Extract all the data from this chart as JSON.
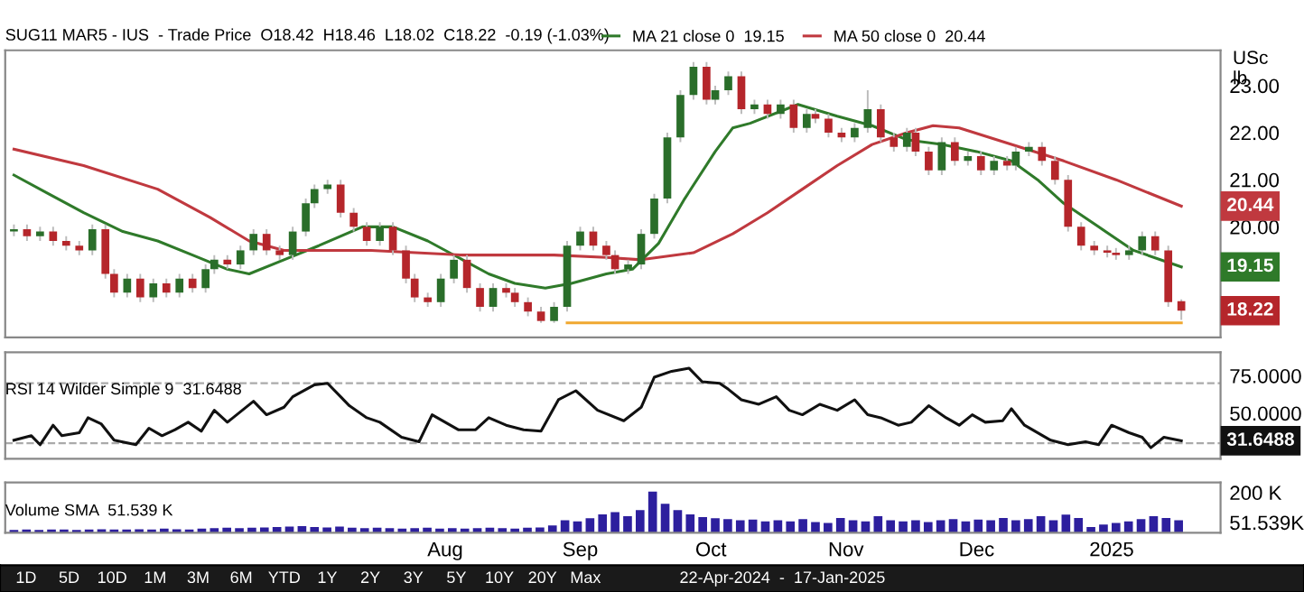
{
  "chart_data": [
    {
      "type": "candlestick",
      "title": "SUG11 MAR5 - IUS  - Trade Price  O18.42  H18.46  L18.02  C18.22  -0.19 (-1.03%)",
      "ylabel": "USc\nlb",
      "legend": "top",
      "grid": false,
      "tick_labels": "y",
      "xlim": [
        "2024-04-22",
        "2025-01-26"
      ],
      "ylim": [
        17.65,
        23.75
      ],
      "yticks": [
        {
          "value": 20,
          "label": "20.00"
        },
        {
          "value": 21,
          "label": "21.00"
        },
        {
          "value": 22,
          "label": "22.00"
        },
        {
          "value": 23,
          "label": "23.00"
        }
      ],
      "x": [
        "2024-04-24",
        "2024-04-27",
        "2024-04-30",
        "2024-05-03",
        "2024-05-06",
        "2024-05-09",
        "2024-05-12",
        "2024-05-15",
        "2024-05-17",
        "2024-05-20",
        "2024-05-23",
        "2024-05-26",
        "2024-05-29",
        "2024-06-01",
        "2024-06-04",
        "2024-06-07",
        "2024-06-09",
        "2024-06-12",
        "2024-06-15",
        "2024-06-18",
        "2024-06-21",
        "2024-06-24",
        "2024-06-27",
        "2024-06-30",
        "2024-07-02",
        "2024-07-05",
        "2024-07-08",
        "2024-07-11",
        "2024-07-14",
        "2024-07-17",
        "2024-07-20",
        "2024-07-23",
        "2024-07-25",
        "2024-07-28",
        "2024-07-31",
        "2024-08-03",
        "2024-08-06",
        "2024-08-09",
        "2024-08-12",
        "2024-08-15",
        "2024-08-17",
        "2024-08-20",
        "2024-08-23",
        "2024-08-26",
        "2024-08-29",
        "2024-09-01",
        "2024-09-04",
        "2024-09-07",
        "2024-09-09",
        "2024-09-12",
        "2024-09-15",
        "2024-09-18",
        "2024-09-21",
        "2024-09-24",
        "2024-09-27",
        "2024-09-30",
        "2024-10-02",
        "2024-10-05",
        "2024-10-08",
        "2024-10-11",
        "2024-10-14",
        "2024-10-17",
        "2024-10-20",
        "2024-10-23",
        "2024-10-25",
        "2024-10-28",
        "2024-10-31",
        "2024-11-03",
        "2024-11-06",
        "2024-11-09",
        "2024-11-12",
        "2024-11-15",
        "2024-11-17",
        "2024-11-20",
        "2024-11-23",
        "2024-11-26",
        "2024-11-29",
        "2024-12-02",
        "2024-12-05",
        "2024-12-08",
        "2024-12-10",
        "2024-12-13",
        "2024-12-16",
        "2024-12-19",
        "2024-12-22",
        "2024-12-25",
        "2024-12-28",
        "2024-12-31",
        "2025-01-02",
        "2025-01-05",
        "2025-01-08",
        "2025-01-11",
        "2025-01-14",
        "2025-01-17"
      ],
      "ohlc": [
        [
          19.9,
          20.05,
          19.8,
          19.95
        ],
        [
          19.95,
          20.05,
          19.7,
          19.8
        ],
        [
          19.8,
          20.0,
          19.7,
          19.9
        ],
        [
          19.9,
          20.0,
          19.6,
          19.7
        ],
        [
          19.7,
          19.8,
          19.5,
          19.6
        ],
        [
          19.6,
          19.7,
          19.4,
          19.5
        ],
        [
          19.5,
          20.05,
          19.4,
          19.95
        ],
        [
          19.95,
          20.05,
          18.9,
          19.0
        ],
        [
          19.0,
          19.1,
          18.5,
          18.6
        ],
        [
          18.6,
          19.0,
          18.5,
          18.9
        ],
        [
          18.9,
          19.0,
          18.4,
          18.5
        ],
        [
          18.5,
          18.9,
          18.4,
          18.8
        ],
        [
          18.8,
          18.9,
          18.5,
          18.6
        ],
        [
          18.6,
          19.0,
          18.5,
          18.9
        ],
        [
          18.9,
          19.0,
          18.6,
          18.7
        ],
        [
          18.7,
          19.2,
          18.6,
          19.1
        ],
        [
          19.1,
          19.4,
          19.0,
          19.3
        ],
        [
          19.3,
          19.4,
          19.1,
          19.2
        ],
        [
          19.2,
          19.6,
          19.1,
          19.5
        ],
        [
          19.5,
          19.95,
          19.4,
          19.85
        ],
        [
          19.85,
          19.95,
          19.4,
          19.5
        ],
        [
          19.5,
          19.6,
          19.3,
          19.4
        ],
        [
          19.4,
          20.0,
          19.3,
          19.9
        ],
        [
          19.9,
          20.6,
          19.8,
          20.5
        ],
        [
          20.5,
          20.9,
          20.4,
          20.8
        ],
        [
          20.8,
          21.0,
          20.7,
          20.9
        ],
        [
          20.9,
          21.0,
          20.2,
          20.3
        ],
        [
          20.3,
          20.4,
          19.9,
          20.0
        ],
        [
          20.0,
          20.1,
          19.6,
          19.7
        ],
        [
          19.7,
          20.1,
          19.6,
          20.0
        ],
        [
          20.0,
          20.1,
          19.4,
          19.5
        ],
        [
          19.5,
          19.6,
          18.8,
          18.9
        ],
        [
          18.9,
          19.0,
          18.4,
          18.5
        ],
        [
          18.5,
          18.6,
          18.3,
          18.4
        ],
        [
          18.4,
          19.0,
          18.3,
          18.9
        ],
        [
          18.9,
          19.4,
          18.8,
          19.3
        ],
        [
          19.3,
          19.4,
          18.6,
          18.7
        ],
        [
          18.7,
          18.8,
          18.2,
          18.3
        ],
        [
          18.3,
          18.8,
          18.2,
          18.7
        ],
        [
          18.7,
          18.8,
          18.5,
          18.6
        ],
        [
          18.6,
          18.7,
          18.3,
          18.4
        ],
        [
          18.4,
          18.5,
          18.1,
          18.2
        ],
        [
          18.2,
          18.3,
          17.96,
          18.0
        ],
        [
          18.0,
          18.4,
          17.96,
          18.3
        ],
        [
          18.3,
          19.7,
          18.2,
          19.6
        ],
        [
          19.6,
          20.0,
          19.5,
          19.9
        ],
        [
          19.9,
          20.0,
          19.5,
          19.6
        ],
        [
          19.6,
          19.7,
          19.3,
          19.4
        ],
        [
          19.4,
          19.5,
          19.0,
          19.1
        ],
        [
          19.1,
          19.3,
          19.0,
          19.2
        ],
        [
          19.2,
          19.95,
          19.1,
          19.85
        ],
        [
          19.85,
          20.7,
          19.75,
          20.6
        ],
        [
          20.6,
          22.0,
          20.5,
          21.9
        ],
        [
          21.9,
          22.9,
          21.8,
          22.8
        ],
        [
          22.8,
          23.5,
          22.7,
          23.4
        ],
        [
          23.4,
          23.5,
          22.6,
          22.7
        ],
        [
          22.7,
          23.0,
          22.6,
          22.9
        ],
        [
          22.9,
          23.3,
          22.8,
          23.2
        ],
        [
          23.2,
          23.3,
          22.4,
          22.5
        ],
        [
          22.5,
          22.7,
          22.4,
          22.6
        ],
        [
          22.6,
          22.7,
          22.3,
          22.4
        ],
        [
          22.4,
          22.7,
          22.3,
          22.6
        ],
        [
          22.6,
          22.7,
          22.0,
          22.1
        ],
        [
          22.1,
          22.5,
          22.0,
          22.4
        ],
        [
          22.4,
          22.5,
          22.2,
          22.3
        ],
        [
          22.3,
          22.4,
          21.9,
          22.0
        ],
        [
          22.0,
          22.1,
          21.8,
          21.9
        ],
        [
          21.9,
          22.2,
          21.8,
          22.1
        ],
        [
          22.1,
          22.9,
          22.0,
          22.5
        ],
        [
          22.5,
          22.6,
          21.8,
          21.9
        ],
        [
          21.9,
          22.0,
          21.6,
          21.7
        ],
        [
          21.7,
          22.1,
          21.6,
          22.0
        ],
        [
          22.0,
          22.1,
          21.5,
          21.6
        ],
        [
          21.6,
          21.7,
          21.1,
          21.2
        ],
        [
          21.2,
          21.9,
          21.1,
          21.8
        ],
        [
          21.8,
          21.9,
          21.3,
          21.4
        ],
        [
          21.4,
          21.6,
          21.3,
          21.5
        ],
        [
          21.5,
          21.6,
          21.1,
          21.2
        ],
        [
          21.2,
          21.5,
          21.1,
          21.4
        ],
        [
          21.4,
          21.5,
          21.2,
          21.3
        ],
        [
          21.3,
          21.7,
          21.2,
          21.6
        ],
        [
          21.6,
          21.8,
          21.5,
          21.7
        ],
        [
          21.7,
          21.8,
          21.3,
          21.4
        ],
        [
          21.4,
          21.5,
          20.9,
          21.0
        ],
        [
          21.0,
          21.1,
          19.9,
          20.0
        ],
        [
          20.0,
          20.1,
          19.5,
          19.6
        ],
        [
          19.6,
          19.7,
          19.4,
          19.5
        ],
        [
          19.5,
          19.6,
          19.35,
          19.45
        ],
        [
          19.45,
          19.55,
          19.3,
          19.4
        ],
        [
          19.4,
          19.6,
          19.3,
          19.5
        ],
        [
          19.5,
          19.9,
          19.4,
          19.8
        ],
        [
          19.8,
          19.9,
          19.4,
          19.5
        ],
        [
          19.5,
          19.6,
          18.3,
          18.4
        ],
        [
          18.42,
          18.46,
          18.02,
          18.22
        ]
      ],
      "series": [
        {
          "type": "line",
          "name": "MA 21 close 0  19.15",
          "color": "#2f7a2a",
          "x": [
            "2024-04-24",
            "2024-05-02",
            "2024-05-10",
            "2024-05-19",
            "2024-05-27",
            "2024-06-04",
            "2024-06-12",
            "2024-06-17",
            "2024-06-25",
            "2024-07-03",
            "2024-07-13",
            "2024-07-20",
            "2024-07-28",
            "2024-08-05",
            "2024-08-11",
            "2024-08-17",
            "2024-08-24",
            "2024-08-30",
            "2024-09-07",
            "2024-09-13",
            "2024-09-19",
            "2024-09-25",
            "2024-10-02",
            "2024-10-06",
            "2024-10-10",
            "2024-10-21",
            "2024-10-30",
            "2024-11-07",
            "2024-11-15",
            "2024-11-23",
            "2024-12-01",
            "2024-12-09",
            "2024-12-15",
            "2024-12-21",
            "2024-12-29",
            "2025-01-06",
            "2025-01-17"
          ],
          "values": [
            21.1,
            20.7,
            20.3,
            19.9,
            19.7,
            19.4,
            19.1,
            19.0,
            19.3,
            19.6,
            20.0,
            20.0,
            19.7,
            19.3,
            19.0,
            18.8,
            18.7,
            18.8,
            19.0,
            19.1,
            19.65,
            20.6,
            21.6,
            22.1,
            22.2,
            22.6,
            22.35,
            22.15,
            21.85,
            21.75,
            21.6,
            21.4,
            21.0,
            20.5,
            20.0,
            19.5,
            19.15
          ]
        },
        {
          "type": "line",
          "name": "MA 50 close 0  20.44",
          "color": "#c0393f",
          "x": [
            "2024-04-24",
            "2024-05-10",
            "2024-05-27",
            "2024-06-08",
            "2024-06-17",
            "2024-06-25",
            "2024-07-15",
            "2024-08-05",
            "2024-08-26",
            "2024-09-07",
            "2024-09-15",
            "2024-09-27",
            "2024-10-06",
            "2024-10-14",
            "2024-10-22",
            "2024-10-30",
            "2024-11-07",
            "2024-11-15",
            "2024-11-21",
            "2024-11-27",
            "2024-12-09",
            "2024-12-21",
            "2025-01-02",
            "2025-01-17"
          ],
          "values": [
            21.65,
            21.3,
            20.8,
            20.2,
            19.7,
            19.5,
            19.5,
            19.4,
            19.4,
            19.35,
            19.3,
            19.45,
            19.85,
            20.3,
            20.8,
            21.3,
            21.75,
            22.0,
            22.15,
            22.1,
            21.75,
            21.4,
            21.0,
            20.44
          ]
        },
        {
          "type": "line",
          "color": "#f0a830",
          "x": [
            "2024-08-29",
            "2025-01-17"
          ],
          "values": [
            17.96,
            17.96
          ]
        }
      ],
      "annotations": [
        {
          "text": "20.44",
          "x": "2025-01-17",
          "y": 20.44
        },
        {
          "text": "19.15",
          "x": "2025-01-17",
          "y": 19.15
        },
        {
          "text": "18.22",
          "x": "2025-01-17",
          "y": 18.22
        }
      ]
    },
    {
      "type": "line",
      "title": "RSI 14 Wilder Simple 9  31.6488",
      "grid": false,
      "tick_labels": "y",
      "xlim": [
        "2024-04-22",
        "2025-01-26"
      ],
      "ylim": [
        19.6,
        90.7
      ],
      "yticks": [
        {
          "value": 50,
          "label": "50.0000"
        },
        {
          "value": 75,
          "label": "75.0000"
        }
      ],
      "ref_lines": [
        {
          "axis": "y",
          "value": 70,
          "color": "#aaaaaa",
          "line_style": "dashed"
        },
        {
          "axis": "y",
          "value": 30,
          "color": "#aaaaaa",
          "line_style": "dashed"
        }
      ],
      "series": [
        {
          "color": "#111111",
          "x": [
            "2024-04-24",
            "2024-04-28",
            "2024-04-30",
            "2024-05-03",
            "2024-05-05",
            "2024-05-09",
            "2024-05-11",
            "2024-05-14",
            "2024-05-17",
            "2024-05-22",
            "2024-05-25",
            "2024-05-28",
            "2024-05-31",
            "2024-06-03",
            "2024-06-06",
            "2024-06-09",
            "2024-06-12",
            "2024-06-18",
            "2024-06-21",
            "2024-06-25",
            "2024-06-27",
            "2024-07-02",
            "2024-07-05",
            "2024-07-08",
            "2024-07-10",
            "2024-07-14",
            "2024-07-17",
            "2024-07-22",
            "2024-07-26",
            "2024-07-29",
            "2024-08-04",
            "2024-08-08",
            "2024-08-11",
            "2024-08-15",
            "2024-08-19",
            "2024-08-23",
            "2024-08-27",
            "2024-08-31",
            "2024-09-05",
            "2024-09-11",
            "2024-09-15",
            "2024-09-18",
            "2024-09-22",
            "2024-09-26",
            "2024-09-29",
            "2024-10-03",
            "2024-10-05",
            "2024-10-08",
            "2024-10-12",
            "2024-10-16",
            "2024-10-19",
            "2024-10-22",
            "2024-10-26",
            "2024-10-30",
            "2024-11-03",
            "2024-11-06",
            "2024-11-09",
            "2024-11-13",
            "2024-11-16",
            "2024-11-20",
            "2024-11-24",
            "2024-11-27",
            "2024-11-30",
            "2024-12-03",
            "2024-12-07",
            "2024-12-09",
            "2024-12-12",
            "2024-12-18",
            "2024-12-22",
            "2024-12-26",
            "2024-12-29",
            "2025-01-01",
            "2025-01-05",
            "2025-01-08",
            "2025-01-10",
            "2025-01-13",
            "2025-01-17"
          ],
          "values": [
            32,
            35,
            29,
            42,
            35,
            37,
            47,
            43,
            32,
            29,
            40,
            35,
            39,
            44,
            38,
            52,
            44,
            58,
            49,
            54,
            61,
            69,
            70,
            61,
            55,
            47,
            44,
            34,
            31,
            49,
            39,
            39,
            47,
            42,
            39,
            38,
            59,
            65,
            52,
            45,
            54,
            74,
            78,
            80,
            71,
            70,
            66,
            59,
            56,
            61,
            52,
            49,
            56,
            52,
            59,
            49,
            47,
            42,
            44,
            55,
            47,
            42,
            49,
            44,
            45,
            53,
            42,
            32,
            29,
            31,
            29,
            42,
            37,
            34,
            27,
            34,
            31.6488
          ]
        }
      ],
      "annotations": [
        {
          "text": "31.6488",
          "x": "2025-01-17",
          "y": 31.6488
        }
      ]
    },
    {
      "type": "bar",
      "title": "Volume SMA  51.539 K",
      "grid": false,
      "xlim": [
        "2024-04-22",
        "2025-01-26"
      ],
      "ylim": [
        0,
        250
      ],
      "yticks": [
        {
          "value": 51.539,
          "label": "51.539K"
        },
        {
          "value": 200,
          "label": "200 K"
        }
      ],
      "xticks": [
        {
          "value": "2024-08-01",
          "label": "Aug"
        },
        {
          "value": "2024-09-01",
          "label": "Sep"
        },
        {
          "value": "2024-10-01",
          "label": "Oct"
        },
        {
          "value": "2024-11-01",
          "label": "Nov"
        },
        {
          "value": "2024-12-01",
          "label": "Dec"
        },
        {
          "value": "2025-01-01",
          "label": "2025"
        }
      ],
      "x": [
        "2024-04-24T00:00",
        "2024-04-26T21:00",
        "2024-04-29T18:00",
        "2024-05-02T15:00",
        "2024-05-05T12:00",
        "2024-05-08T09:00",
        "2024-05-11T06:00",
        "2024-05-14T03:00",
        "2024-05-17T00:00",
        "2024-05-19T21:00",
        "2024-05-22T18:00",
        "2024-05-25T15:00",
        "2024-05-28T12:00",
        "2024-05-31T09:00",
        "2024-06-03T06:00",
        "2024-06-06T03:00",
        "2024-06-09T00:00",
        "2024-06-11T21:00",
        "2024-06-14T18:00",
        "2024-06-17T15:00",
        "2024-06-20T12:00",
        "2024-06-23T09:00",
        "2024-06-26T06:00",
        "2024-06-29T03:00",
        "2024-07-02T00:00",
        "2024-07-04T21:00",
        "2024-07-07T18:00",
        "2024-07-10T15:00",
        "2024-07-13T12:00",
        "2024-07-16T09:00",
        "2024-07-19T06:00",
        "2024-07-22T03:00",
        "2024-07-25T00:00",
        "2024-07-27T21:00",
        "2024-07-30T18:00",
        "2024-08-02T15:00",
        "2024-08-05T12:00",
        "2024-08-08T09:00",
        "2024-08-11T06:00",
        "2024-08-14T03:00",
        "2024-08-17T00:00",
        "2024-08-19T21:00",
        "2024-08-22T18:00",
        "2024-08-25T15:00",
        "2024-08-28T12:00",
        "2024-08-31T09:00",
        "2024-09-03T06:00",
        "2024-09-06T03:00",
        "2024-09-09T00:00",
        "2024-09-11T21:00",
        "2024-09-14T18:00",
        "2024-09-17T15:00",
        "2024-09-20T12:00",
        "2024-09-23T09:00",
        "2024-09-26T06:00",
        "2024-09-29T03:00",
        "2024-10-02T00:00",
        "2024-10-04T21:00",
        "2024-10-07T18:00",
        "2024-10-10T15:00",
        "2024-10-13T12:00",
        "2024-10-16T09:00",
        "2024-10-19T06:00",
        "2024-10-22T03:00",
        "2024-10-25T00:00",
        "2024-10-27T21:00",
        "2024-10-30T18:00",
        "2024-11-02T15:00",
        "2024-11-05T12:00",
        "2024-11-08T09:00",
        "2024-11-11T06:00",
        "2024-11-14T03:00",
        "2024-11-17T00:00",
        "2024-11-19T21:00",
        "2024-11-22T18:00",
        "2024-11-25T15:00",
        "2024-11-28T12:00",
        "2024-12-01T09:00",
        "2024-12-04T06:00",
        "2024-12-07T03:00",
        "2024-12-10T00:00",
        "2024-12-12T21:00",
        "2024-12-15T18:00",
        "2024-12-18T15:00",
        "2024-12-21T12:00",
        "2024-12-24T09:00",
        "2024-12-27T06:00",
        "2024-12-30T03:00",
        "2025-01-02T00:00",
        "2025-01-04T21:00",
        "2025-01-07T18:00",
        "2025-01-10T15:00",
        "2025-01-13T12:00",
        "2025-01-16T09:00"
      ],
      "series": [
        {
          "color": "#2d1f9e",
          "values": [
            14,
            16,
            14,
            16,
            16,
            14,
            16,
            18,
            16,
            16,
            18,
            16,
            21,
            18,
            16,
            21,
            23,
            25,
            23,
            25,
            27,
            29,
            31,
            33,
            29,
            27,
            31,
            25,
            23,
            25,
            23,
            21,
            23,
            25,
            21,
            23,
            21,
            23,
            25,
            23,
            21,
            25,
            27,
            37,
            62,
            57,
            72,
            92,
            103,
            82,
            113,
            205,
            144,
            113,
            92,
            78,
            72,
            68,
            62,
            66,
            57,
            62,
            57,
            68,
            53,
            49,
            74,
            62,
            57,
            82,
            62,
            57,
            62,
            53,
            62,
            68,
            57,
            66,
            62,
            74,
            62,
            68,
            82,
            62,
            90,
            74,
            29,
            41,
            49,
            57,
            68,
            82,
            74,
            62
          ]
        }
      ],
      "annotations": [
        "1D",
        "5D",
        "10D",
        "1M",
        "3M",
        "6M",
        "YTD",
        "1Y",
        "2Y",
        "3Y",
        "5Y",
        "10Y",
        "20Y",
        "Max",
        "22-Apr-2024  -  17-Jan-2025"
      ]
    }
  ]
}
